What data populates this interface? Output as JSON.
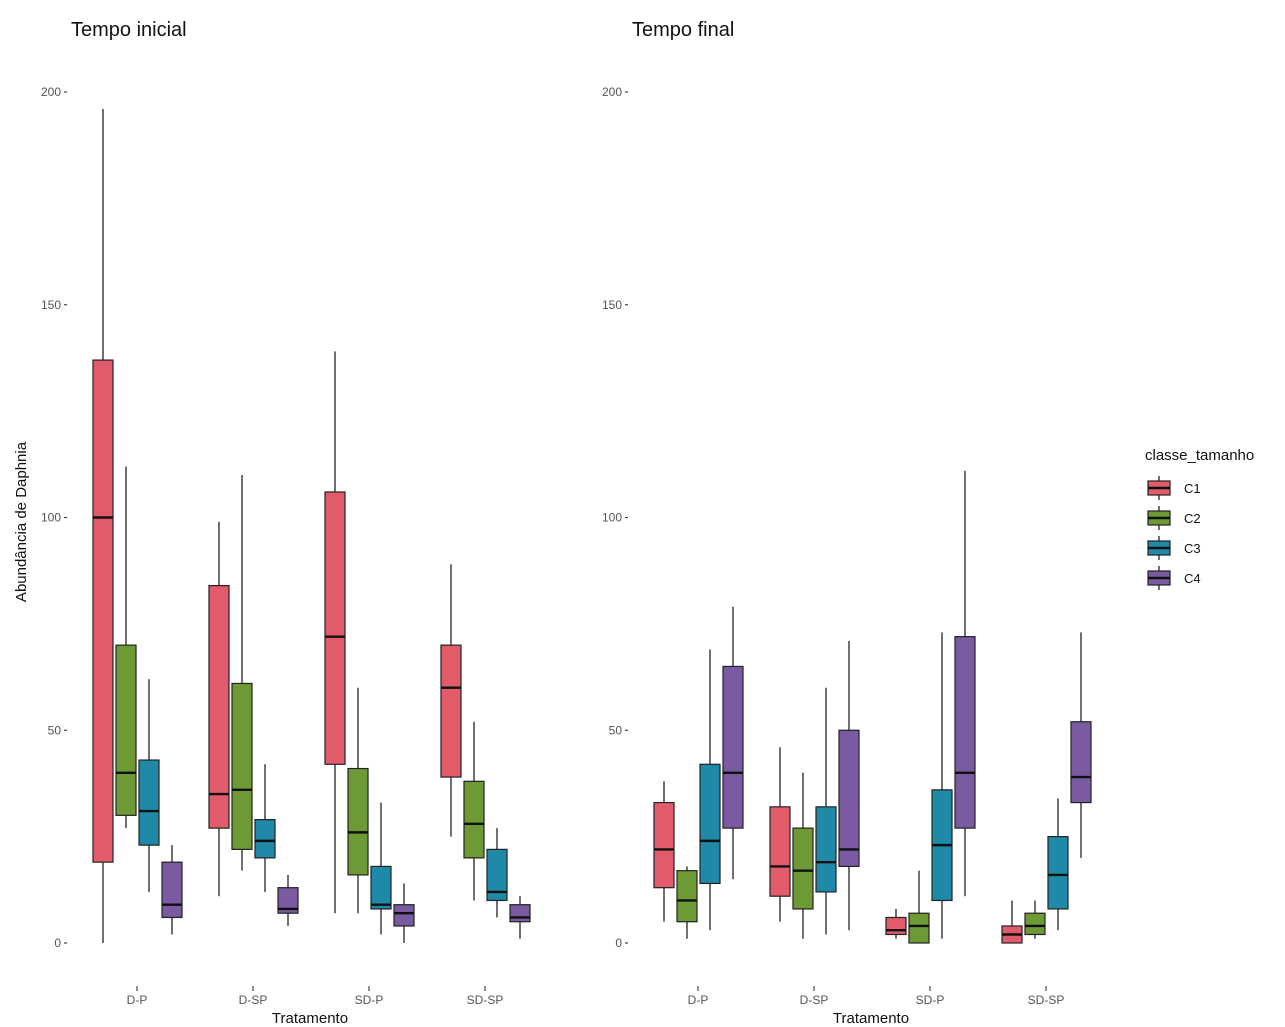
{
  "chart_data": {
    "type": "boxplot",
    "ylabel": "Abundância de Daphnia",
    "xlabel": "Tratamento",
    "ylim": [
      0,
      200
    ],
    "yticks": [
      0,
      50,
      100,
      150,
      200
    ],
    "grid": false,
    "legend": {
      "title": "classe_tamanho",
      "position": "right",
      "entries": [
        {
          "name": "C1",
          "color": "#e15b6b"
        },
        {
          "name": "C2",
          "color": "#6d9a34"
        },
        {
          "name": "C3",
          "color": "#1f8aa8"
        },
        {
          "name": "C4",
          "color": "#7a5aa0"
        }
      ]
    },
    "categories": [
      "D-P",
      "D-SP",
      "SD-P",
      "SD-SP"
    ],
    "panels": [
      {
        "title": "Tempo inicial",
        "series": [
          {
            "name": "C1",
            "boxes": [
              {
                "min": 0,
                "q1": 19,
                "median": 100,
                "q3": 137,
                "max": 196
              },
              {
                "min": 11,
                "q1": 27,
                "median": 35,
                "q3": 84,
                "max": 99
              },
              {
                "min": 7,
                "q1": 42,
                "median": 72,
                "q3": 106,
                "max": 139
              },
              {
                "min": 25,
                "q1": 39,
                "median": 60,
                "q3": 70,
                "max": 89
              }
            ]
          },
          {
            "name": "C2",
            "boxes": [
              {
                "min": 27,
                "q1": 30,
                "median": 40,
                "q3": 70,
                "max": 112
              },
              {
                "min": 17,
                "q1": 22,
                "median": 36,
                "q3": 61,
                "max": 110
              },
              {
                "min": 7,
                "q1": 16,
                "median": 26,
                "q3": 41,
                "max": 60
              },
              {
                "min": 10,
                "q1": 20,
                "median": 28,
                "q3": 38,
                "max": 52
              }
            ]
          },
          {
            "name": "C3",
            "boxes": [
              {
                "min": 12,
                "q1": 23,
                "median": 31,
                "q3": 43,
                "max": 62
              },
              {
                "min": 12,
                "q1": 20,
                "median": 24,
                "q3": 29,
                "max": 42
              },
              {
                "min": 2,
                "q1": 8,
                "median": 9,
                "q3": 18,
                "max": 33
              },
              {
                "min": 6,
                "q1": 10,
                "median": 12,
                "q3": 22,
                "max": 27
              }
            ]
          },
          {
            "name": "C4",
            "boxes": [
              {
                "min": 2,
                "q1": 6,
                "median": 9,
                "q3": 19,
                "max": 23
              },
              {
                "min": 4,
                "q1": 7,
                "median": 8,
                "q3": 13,
                "max": 16
              },
              {
                "min": 0,
                "q1": 4,
                "median": 7,
                "q3": 9,
                "max": 14
              },
              {
                "min": 1,
                "q1": 5,
                "median": 6,
                "q3": 9,
                "max": 11
              }
            ]
          }
        ]
      },
      {
        "title": "Tempo final",
        "series": [
          {
            "name": "C1",
            "boxes": [
              {
                "min": 5,
                "q1": 13,
                "median": 22,
                "q3": 33,
                "max": 38
              },
              {
                "min": 5,
                "q1": 11,
                "median": 18,
                "q3": 32,
                "max": 46
              },
              {
                "min": 1,
                "q1": 2,
                "median": 3,
                "q3": 6,
                "max": 8
              },
              {
                "min": 0,
                "q1": 0,
                "median": 2,
                "q3": 4,
                "max": 10
              }
            ]
          },
          {
            "name": "C2",
            "boxes": [
              {
                "min": 1,
                "q1": 5,
                "median": 10,
                "q3": 17,
                "max": 18
              },
              {
                "min": 1,
                "q1": 8,
                "median": 17,
                "q3": 27,
                "max": 40
              },
              {
                "min": 0,
                "q1": 0,
                "median": 4,
                "q3": 7,
                "max": 17
              },
              {
                "min": 1,
                "q1": 2,
                "median": 4,
                "q3": 7,
                "max": 10
              }
            ]
          },
          {
            "name": "C3",
            "boxes": [
              {
                "min": 3,
                "q1": 14,
                "median": 24,
                "q3": 42,
                "max": 69
              },
              {
                "min": 2,
                "q1": 12,
                "median": 19,
                "q3": 32,
                "max": 60
              },
              {
                "min": 1,
                "q1": 10,
                "median": 23,
                "q3": 36,
                "max": 73
              },
              {
                "min": 3,
                "q1": 8,
                "median": 16,
                "q3": 25,
                "max": 34
              }
            ]
          },
          {
            "name": "C4",
            "boxes": [
              {
                "min": 15,
                "q1": 27,
                "median": 40,
                "q3": 65,
                "max": 79
              },
              {
                "min": 3,
                "q1": 18,
                "median": 22,
                "q3": 50,
                "max": 71
              },
              {
                "min": 11,
                "q1": 27,
                "median": 40,
                "q3": 72,
                "max": 111
              },
              {
                "min": 20,
                "q1": 33,
                "median": 39,
                "q3": 52,
                "max": 73
              }
            ]
          }
        ]
      }
    ]
  }
}
